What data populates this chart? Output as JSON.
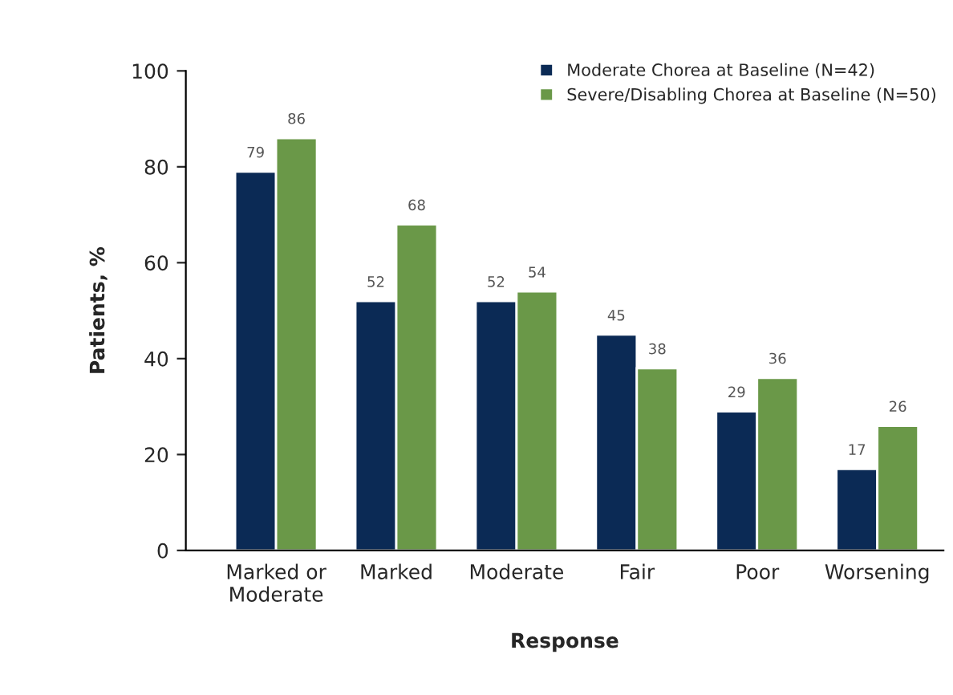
{
  "chart_data": {
    "type": "bar",
    "xlabel": "Response",
    "ylabel": "Patients, %",
    "categories": [
      "Marked or\nModerate",
      "Marked",
      "Moderate",
      "Fair",
      "Poor",
      "Worsening"
    ],
    "series": [
      {
        "name": "Moderate Chorea at Baseline (N=42)",
        "color": "#0b2a55",
        "values": [
          79,
          52,
          52,
          45,
          29,
          17
        ]
      },
      {
        "name": "Severe/Disabling Chorea at Baseline (N=50)",
        "color": "#6a9848",
        "values": [
          86,
          68,
          54,
          38,
          36,
          26
        ]
      }
    ],
    "ylim": [
      0,
      100
    ],
    "yticks": [
      0,
      20,
      40,
      60,
      80,
      100
    ],
    "grid": false,
    "legend": "top right",
    "data_labels": true
  }
}
